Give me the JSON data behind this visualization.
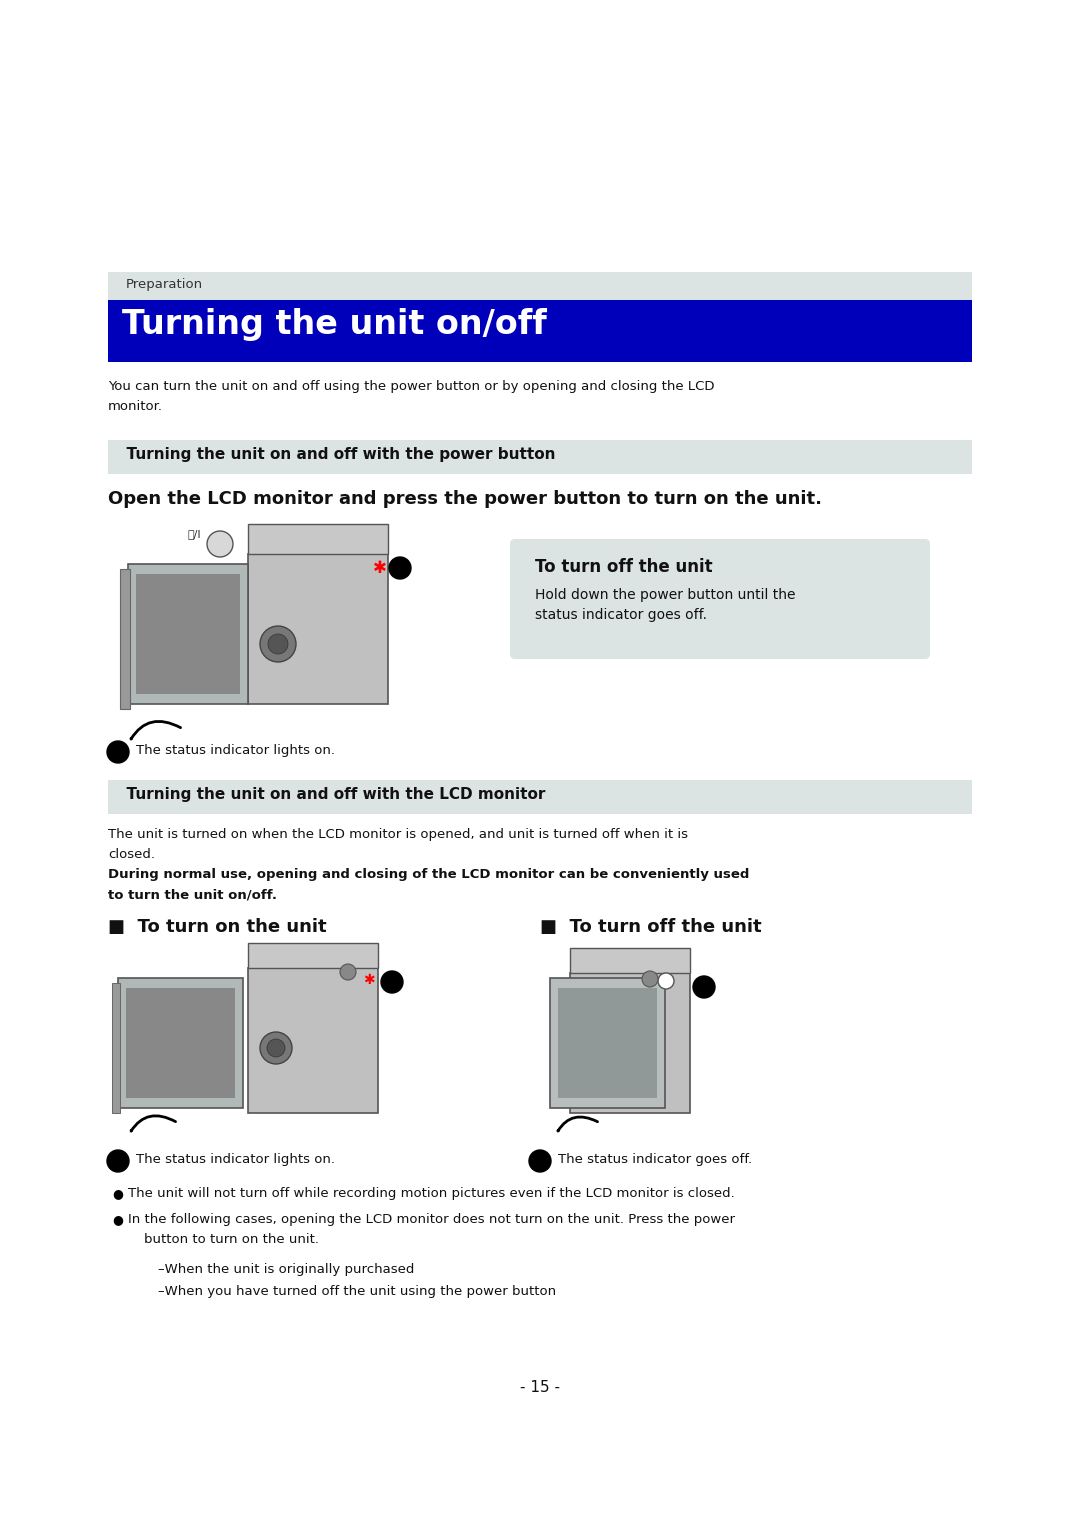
{
  "page_bg": "#ffffff",
  "prep_bar_color": "#dce3e3",
  "prep_text": "Preparation",
  "prep_text_color": "#333333",
  "title_bar_color": "#0000bb",
  "title_text": "Turning the unit on/off",
  "title_text_color": "#ffffff",
  "intro_text1": "You can turn the unit on and off using the power button or by opening and closing the LCD",
  "intro_text2": "monitor.",
  "section1_bar_color": "#dce3e3",
  "section1_text": "  Turning the unit on and off with the power button",
  "section1_subheading": "Open the LCD monitor and press the power button to turn on the unit.",
  "turn_off_box_color": "#dce3e3",
  "turn_off_title": "To turn off the unit",
  "turn_off_text1": "Hold down the power button until the",
  "turn_off_text2": "status indicator goes off.",
  "status_a_on": "The status indicator lights on.",
  "section2_bar_color": "#dce3e3",
  "section2_text": "  Turning the unit on and off with the LCD monitor",
  "lcd_intro1": "The unit is turned on when the LCD monitor is opened, and unit is turned off when it is",
  "lcd_intro2": "closed.",
  "lcd_bold1": "During normal use, opening and closing of the LCD monitor can be conveniently used",
  "lcd_bold2": "to turn the unit on/off.",
  "turn_on_heading": "■  To turn on the unit",
  "turn_off_heading": "■  To turn off the unit",
  "status_a_text": "The status indicator lights on.",
  "status_b_text": "The status indicator goes off.",
  "bullet1": "The unit will not turn off while recording motion pictures even if the LCD monitor is closed.",
  "bullet2a": "In the following cases, opening the LCD monitor does not turn on the unit. Press the power",
  "bullet2b": "button to turn on the unit.",
  "sub1": "–When the unit is originally purchased",
  "sub2": "–When you have turned off the unit using the power button",
  "page_number": "- 15 -",
  "cam_body_color": "#c0c0c0",
  "cam_body_edge": "#555555",
  "cam_screen_color": "#a8b0b0",
  "cam_screen_inner": "#787878",
  "cam_lens_color": "#888888"
}
